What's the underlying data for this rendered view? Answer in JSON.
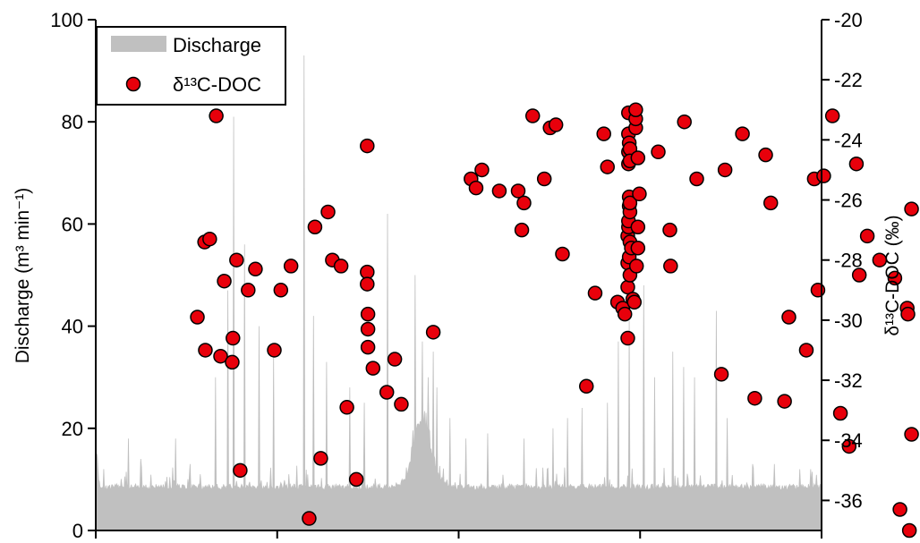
{
  "chart_data": {
    "type": "scatter",
    "left_axis": {
      "label": "Discharge (m³ min⁻¹)",
      "ylim": [
        0,
        100
      ],
      "ticks": [
        "0",
        "20",
        "40",
        "60",
        "80",
        "100"
      ]
    },
    "right_axis": {
      "label": "δ¹³C-DOC (‰)",
      "ylim": [
        -37,
        -20
      ],
      "ticks": [
        "-36",
        "-34",
        "-32",
        "-30",
        "-28",
        "-26",
        "-24",
        "-22",
        "-20"
      ]
    },
    "x_axis": {
      "xlim": [
        0,
        1000
      ],
      "ticks": [],
      "tick_positions": [
        0,
        250,
        500,
        750,
        1000
      ]
    },
    "legend": {
      "position": "top-left",
      "entries": [
        {
          "label": "Discharge",
          "color": "#c0c0c0",
          "kind": "area"
        },
        {
          "label": "δ¹³C-DOC",
          "color": "#e8000b",
          "kind": "marker"
        }
      ]
    },
    "series": [
      {
        "name": "Discharge",
        "kind": "area",
        "color": "#c0c0c0",
        "baseline": 8.5,
        "spikes": [
          [
            2,
            15
          ],
          [
            45,
            18
          ],
          [
            62,
            14
          ],
          [
            110,
            18
          ],
          [
            130,
            13
          ],
          [
            165,
            30
          ],
          [
            182,
            47
          ],
          [
            190,
            81
          ],
          [
            205,
            56
          ],
          [
            225,
            40
          ],
          [
            245,
            34
          ],
          [
            287,
            93
          ],
          [
            300,
            42
          ],
          [
            318,
            33
          ],
          [
            350,
            28
          ],
          [
            370,
            25
          ],
          [
            402,
            62
          ],
          [
            440,
            50
          ],
          [
            450,
            37
          ],
          [
            458,
            30
          ],
          [
            465,
            35
          ],
          [
            470,
            28
          ],
          [
            488,
            22
          ],
          [
            510,
            18
          ],
          [
            540,
            19
          ],
          [
            590,
            18
          ],
          [
            630,
            20
          ],
          [
            650,
            22
          ],
          [
            670,
            24
          ],
          [
            705,
            25
          ],
          [
            720,
            37
          ],
          [
            735,
            41
          ],
          [
            755,
            48
          ],
          [
            770,
            30
          ],
          [
            795,
            35
          ],
          [
            810,
            32
          ],
          [
            825,
            30
          ],
          [
            855,
            43
          ],
          [
            870,
            22
          ],
          [
            905,
            13
          ],
          [
            935,
            13
          ],
          [
            970,
            12
          ],
          [
            985,
            12
          ]
        ],
        "hump": {
          "center": 450,
          "width": 18,
          "height": 16
        }
      },
      {
        "name": "δ¹³C-DOC",
        "kind": "scatter",
        "color": "#e8000b",
        "points": [
          [
            140,
            -29.9
          ],
          [
            150,
            -27.4
          ],
          [
            151,
            -31
          ],
          [
            157,
            -27.3
          ],
          [
            166,
            -23.2
          ],
          [
            172,
            -31.2
          ],
          [
            177,
            -28.7
          ],
          [
            188,
            -31.4
          ],
          [
            189,
            -30.6
          ],
          [
            194,
            -28
          ],
          [
            199,
            -35
          ],
          [
            210,
            -29
          ],
          [
            220,
            -28.3
          ],
          [
            246,
            -31
          ],
          [
            255,
            -29
          ],
          [
            269,
            -28.2
          ],
          [
            294,
            -36.6
          ],
          [
            302,
            -26.9
          ],
          [
            310,
            -34.6
          ],
          [
            320,
            -26.4
          ],
          [
            326,
            -28.0
          ],
          [
            338,
            -28.2
          ],
          [
            346,
            -32.9
          ],
          [
            359,
            -35.3
          ],
          [
            374,
            -24.2
          ],
          [
            374,
            -28.4
          ],
          [
            374,
            -28.8
          ],
          [
            375,
            -29.8
          ],
          [
            375,
            -30.3
          ],
          [
            375,
            -30.9
          ],
          [
            382,
            -31.6
          ],
          [
            401,
            -32.4
          ],
          [
            412,
            -31.3
          ],
          [
            421,
            -32.8
          ],
          [
            465,
            -30.4
          ],
          [
            517,
            -25.3
          ],
          [
            524,
            -25.6
          ],
          [
            532,
            -25
          ],
          [
            556,
            -25.7
          ],
          [
            582,
            -25.7
          ],
          [
            587,
            -27
          ],
          [
            590,
            -26.1
          ],
          [
            602,
            -23.2
          ],
          [
            618,
            -25.3
          ],
          [
            626,
            -23.6
          ],
          [
            634,
            -23.5
          ],
          [
            643,
            -27.8
          ],
          [
            676,
            -32.2
          ],
          [
            688,
            -29.1
          ],
          [
            700,
            -23.8
          ],
          [
            705,
            -24.9
          ],
          [
            719,
            -29.4
          ],
          [
            726,
            -29.6
          ],
          [
            729,
            -29.8
          ],
          [
            733,
            -30.6
          ],
          [
            733,
            -28.9
          ],
          [
            733,
            -28.1
          ],
          [
            733,
            -27.2
          ],
          [
            734,
            -26.9
          ],
          [
            734,
            -24.8
          ],
          [
            734,
            -24.4
          ],
          [
            734,
            -23.8
          ],
          [
            734,
            -23.1
          ],
          [
            734,
            -26.7
          ],
          [
            735,
            -27.9
          ],
          [
            735,
            -25.9
          ],
          [
            735,
            -24.1
          ],
          [
            735,
            -26.2
          ],
          [
            736,
            -27.4
          ],
          [
            736,
            -26.4
          ],
          [
            736,
            -26.1
          ],
          [
            736,
            -24.3
          ],
          [
            736,
            -24.7
          ],
          [
            736,
            -28.5
          ],
          [
            738,
            -27.6
          ],
          [
            740,
            -29.3
          ],
          [
            742,
            -29.4
          ],
          [
            744,
            -23.6
          ],
          [
            744,
            -23.3
          ],
          [
            744,
            -23.0
          ],
          [
            745,
            -28.2
          ],
          [
            747,
            -24.6
          ],
          [
            747,
            -27.6
          ],
          [
            747,
            -26.9
          ],
          [
            749,
            -25.8
          ],
          [
            775,
            -24.4
          ],
          [
            791,
            -27
          ],
          [
            792,
            -28.2
          ],
          [
            811,
            -23.4
          ],
          [
            828,
            -25.3
          ],
          [
            862,
            -31.8
          ],
          [
            867,
            -25
          ],
          [
            891,
            -23.8
          ],
          [
            908,
            -32.6
          ],
          [
            923,
            -24.5
          ],
          [
            930,
            -26.1
          ],
          [
            949,
            -32.7
          ],
          [
            955,
            -29.9
          ],
          [
            979,
            -31
          ],
          [
            990,
            -25.3
          ],
          [
            995,
            -29
          ],
          [
            1003,
            -25.2
          ],
          [
            1015,
            -23.2
          ],
          [
            1026,
            -33.1
          ],
          [
            1038,
            -34.2
          ],
          [
            1048,
            -24.8
          ],
          [
            1052,
            -28.5
          ],
          [
            1063,
            -27.2
          ],
          [
            1080,
            -28
          ],
          [
            1101,
            -28.6
          ],
          [
            1108,
            -36.3
          ],
          [
            1118,
            -29.6
          ],
          [
            1119,
            -29.8
          ],
          [
            1121,
            -37
          ],
          [
            1124,
            -33.8
          ],
          [
            1124,
            -26.3
          ]
        ]
      }
    ]
  }
}
